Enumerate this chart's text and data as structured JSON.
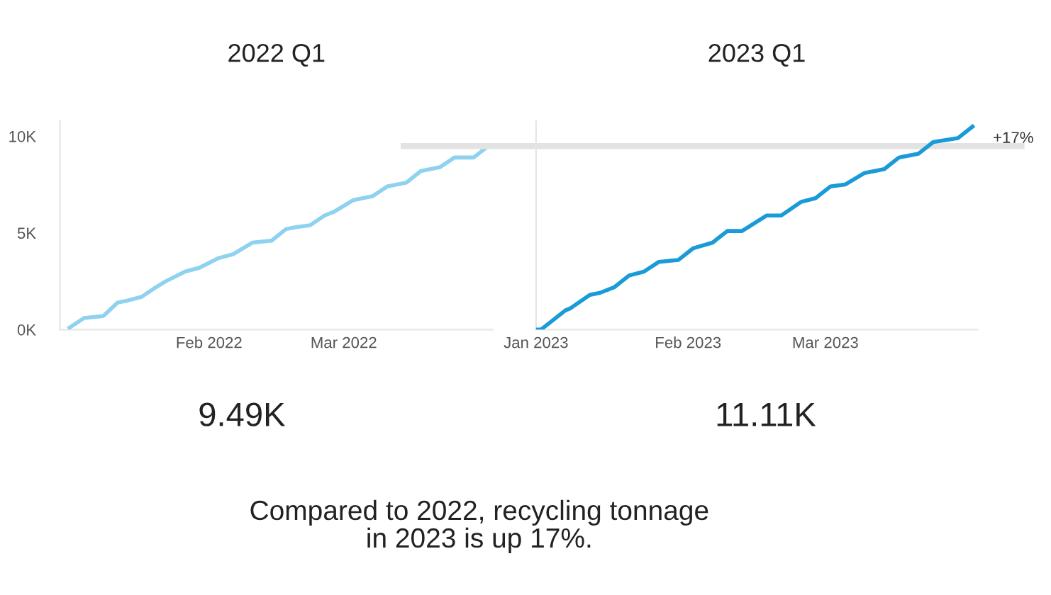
{
  "chart_data": [
    {
      "type": "line",
      "title": "2022 Q1",
      "annotations": [
        "9.49K",
        "Compared to 2022, recycling tonnage in 2023 is up 17%."
      ],
      "series": [
        {
          "color": "#8fd2f0",
          "x": [
            "2022-01-03",
            "2022-01-06",
            "2022-01-10",
            "2022-01-13",
            "2022-01-15",
            "2022-01-18",
            "2022-01-21",
            "2022-01-23",
            "2022-01-27",
            "2022-01-30",
            "2022-02-03",
            "2022-02-06",
            "2022-02-10",
            "2022-02-14",
            "2022-02-17",
            "2022-02-19",
            "2022-02-22",
            "2022-02-25",
            "2022-02-27",
            "2022-03-03",
            "2022-03-07",
            "2022-03-10",
            "2022-03-14",
            "2022-03-17",
            "2022-03-21",
            "2022-03-24",
            "2022-03-28",
            "2022-03-31"
          ],
          "values": [
            100,
            600,
            700,
            1400,
            1500,
            1700,
            2200,
            2500,
            3000,
            3200,
            3700,
            3900,
            4500,
            4600,
            5200,
            5300,
            5400,
            5900,
            6100,
            6700,
            6900,
            7400,
            7600,
            8200,
            8400,
            8900,
            8900,
            9490
          ]
        }
      ],
      "xlim": [
        "2022-01-01",
        "2022-04-01"
      ],
      "ylim": [
        0,
        10800
      ],
      "xticks": [
        {
          "value": "2022-02-01",
          "label": "Feb 2022"
        },
        {
          "value": "2022-03-01",
          "label": "Mar 2022"
        }
      ],
      "yticks": [
        {
          "value": 0,
          "label": "0K"
        },
        {
          "value": 5000,
          "label": "5K"
        },
        {
          "value": 10000,
          "label": "10K"
        }
      ],
      "grid": false,
      "legend": false
    },
    {
      "type": "line",
      "title": "2023 Q1",
      "annotations": [
        "11.11K",
        "+17%"
      ],
      "series": [
        {
          "color": "#1a9bd7",
          "x": [
            "2023-01-01",
            "2023-01-02",
            "2023-01-07",
            "2023-01-08",
            "2023-01-12",
            "2023-01-14",
            "2023-01-17",
            "2023-01-20",
            "2023-01-23",
            "2023-01-26",
            "2023-01-30",
            "2023-02-02",
            "2023-02-06",
            "2023-02-09",
            "2023-02-12",
            "2023-02-17",
            "2023-02-20",
            "2023-02-24",
            "2023-02-27",
            "2023-03-02",
            "2023-03-05",
            "2023-03-09",
            "2023-03-13",
            "2023-03-16",
            "2023-03-20",
            "2023-03-23",
            "2023-03-28",
            "2023-03-31"
          ],
          "values": [
            0,
            0,
            1000,
            1100,
            1800,
            1900,
            2200,
            2800,
            3000,
            3500,
            3600,
            4200,
            4500,
            5100,
            5100,
            5900,
            5900,
            6600,
            6800,
            7400,
            7500,
            8100,
            8300,
            8900,
            9100,
            9700,
            9900,
            10500
          ]
        }
      ],
      "ref_lines": [
        {
          "axis": "y",
          "value": 9490,
          "color": "#e3e3e3"
        }
      ],
      "xlim": [
        "2023-01-01",
        "2023-04-01"
      ],
      "ylim": [
        0,
        10800
      ],
      "xticks": [
        {
          "value": "2023-01-01",
          "label": "Jan 2023"
        },
        {
          "value": "2023-02-01",
          "label": "Feb 2023"
        },
        {
          "value": "2023-03-01",
          "label": "Mar 2023"
        }
      ],
      "grid": false,
      "legend": false
    }
  ]
}
